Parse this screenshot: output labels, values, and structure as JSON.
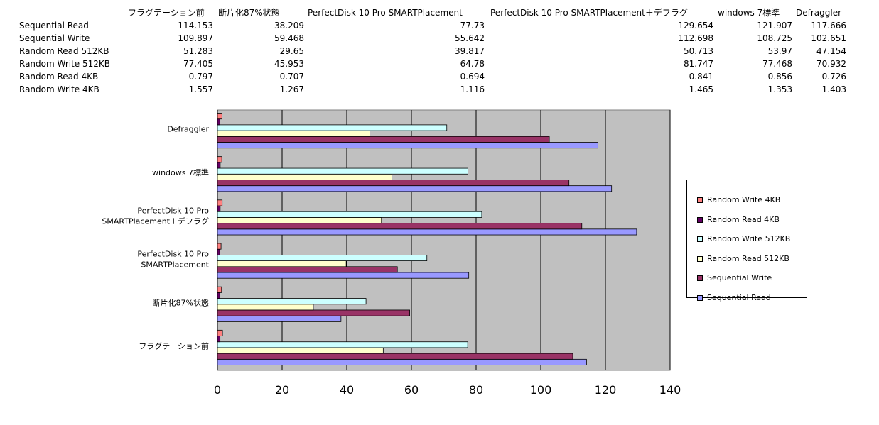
{
  "table": {
    "headers": [
      "フラグテーション前",
      "断片化87%状態",
      "PerfectDisk 10 Pro  SMARTPlacement",
      "PerfectDisk 10 Pro  SMARTPlacement＋デフラグ",
      "windows 7標準",
      "Defraggler"
    ],
    "rows": [
      {
        "label": "Sequential Read",
        "values": [
          "114.153",
          "38.209",
          "77.73",
          "129.654",
          "121.907",
          "117.666"
        ]
      },
      {
        "label": "Sequential Write",
        "values": [
          "109.897",
          "59.468",
          "55.642",
          "112.698",
          "108.725",
          "102.651"
        ]
      },
      {
        "label": "Random Read 512KB",
        "values": [
          "51.283",
          "29.65",
          "39.817",
          "50.713",
          "53.97",
          "47.154"
        ]
      },
      {
        "label": "Random Write 512KB",
        "values": [
          "77.405",
          "45.953",
          "64.78",
          "81.747",
          "77.468",
          "70.932"
        ]
      },
      {
        "label": "Random Read 4KB",
        "values": [
          "0.797",
          "0.707",
          "0.694",
          "0.841",
          "0.856",
          "0.726"
        ]
      },
      {
        "label": "Random Write 4KB",
        "values": [
          "1.557",
          "1.267",
          "1.116",
          "1.465",
          "1.353",
          "1.403"
        ]
      }
    ]
  },
  "chart_data": {
    "type": "bar",
    "orientation": "horizontal",
    "categories": [
      "フラグテーション前",
      "断片化87%状態",
      "PerfectDisk 10 Pro\nSMARTPlacement",
      "PerfectDisk 10 Pro\nSMARTPlacement＋デフラグ",
      "windows 7標準",
      "Defraggler"
    ],
    "series": [
      {
        "name": "Sequential Read",
        "color": "#9999FF",
        "values": [
          114.153,
          38.209,
          77.73,
          129.654,
          121.907,
          117.666
        ]
      },
      {
        "name": "Sequential Write",
        "color": "#993366",
        "values": [
          109.897,
          59.468,
          55.642,
          112.698,
          108.725,
          102.651
        ]
      },
      {
        "name": "Random Read 512KB",
        "color": "#FFFFCC",
        "values": [
          51.283,
          29.65,
          39.817,
          50.713,
          53.97,
          47.154
        ]
      },
      {
        "name": "Random Write 512KB",
        "color": "#CCFFFF",
        "values": [
          77.405,
          45.953,
          64.78,
          81.747,
          77.468,
          70.932
        ]
      },
      {
        "name": "Random Read 4KB",
        "color": "#660066",
        "values": [
          0.797,
          0.707,
          0.694,
          0.841,
          0.856,
          0.726
        ]
      },
      {
        "name": "Random Write 4KB",
        "color": "#FF8080",
        "values": [
          1.557,
          1.267,
          1.116,
          1.465,
          1.353,
          1.403
        ]
      }
    ],
    "xlim": [
      0,
      140
    ],
    "xticks": [
      "0",
      "20",
      "40",
      "60",
      "80",
      "100",
      "120",
      "140"
    ],
    "legend": [
      "Random Write 4KB",
      "Random Read 4KB",
      "Random Write 512KB",
      "Random Read 512KB",
      "Sequential Write",
      "Sequential Read"
    ],
    "legend_position": "right",
    "grid": true,
    "plot_background": "#C0C0C0"
  }
}
